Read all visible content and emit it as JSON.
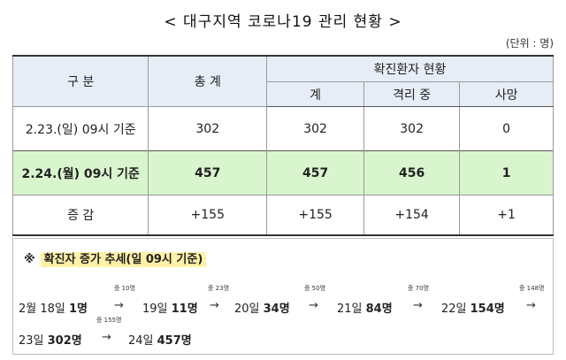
{
  "title": "< 대구지역 코로나19 관리 현황 >",
  "unit": "(단위 : 명)",
  "table": {
    "col_category": "구  분",
    "col_total": "총 계",
    "col_confirmed": "확진환자 현황",
    "sub_sum": "계",
    "sub_isolation": "격리 중",
    "sub_death": "사망",
    "rows": [
      {
        "label": "2.23.(일) 09시 기준",
        "total": "302",
        "sum": "302",
        "isolation": "302",
        "death": "0"
      },
      {
        "label": "2.24.(월) 09시 기준",
        "total": "457",
        "sum": "457",
        "isolation": "456",
        "death": "1"
      },
      {
        "label": "증  감",
        "total": "+155",
        "sum": "+155",
        "isolation": "+154",
        "death": "+1"
      }
    ]
  },
  "trend": {
    "mark": "※",
    "heading": "확진자 증가 추세(일 09시 기준)",
    "arrow": "→",
    "items": [
      {
        "date": "2월 18일 ",
        "count": "1명"
      },
      {
        "date": "19일 ",
        "count": "11명"
      },
      {
        "date": "20일 ",
        "count": "34명"
      },
      {
        "date": "21일 ",
        "count": "84명"
      },
      {
        "date": "22일 ",
        "count": "154명"
      },
      {
        "date": "23일 ",
        "count": "302명"
      },
      {
        "date": "24일 ",
        "count": "457명"
      }
    ],
    "increases": [
      "증 10명",
      "증 23명",
      "증 50명",
      "증 70명",
      "증 148명",
      "증 155명"
    ]
  }
}
